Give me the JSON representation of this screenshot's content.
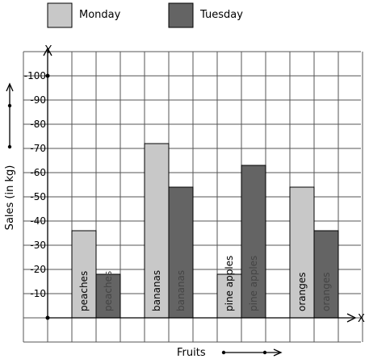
{
  "chart_data": {
    "type": "bar",
    "categories": [
      "peaches",
      "bananas",
      "pine apples",
      "oranges"
    ],
    "series": [
      {
        "name": "Monday",
        "color": "#c8c8c8",
        "values": [
          36,
          72,
          18,
          54
        ]
      },
      {
        "name": "Tuesday",
        "color": "#646464",
        "values": [
          18,
          54,
          63,
          36
        ]
      }
    ],
    "xlabel": "Fruits",
    "ylabel": "Sales (in kg)",
    "x_axis_letter": "X",
    "y_axis_letter": "Y",
    "ylim": [
      0,
      100
    ],
    "yticks": [
      10,
      20,
      30,
      40,
      50,
      60,
      70,
      80,
      90,
      100
    ],
    "grid": true,
    "legend_position": "top"
  }
}
